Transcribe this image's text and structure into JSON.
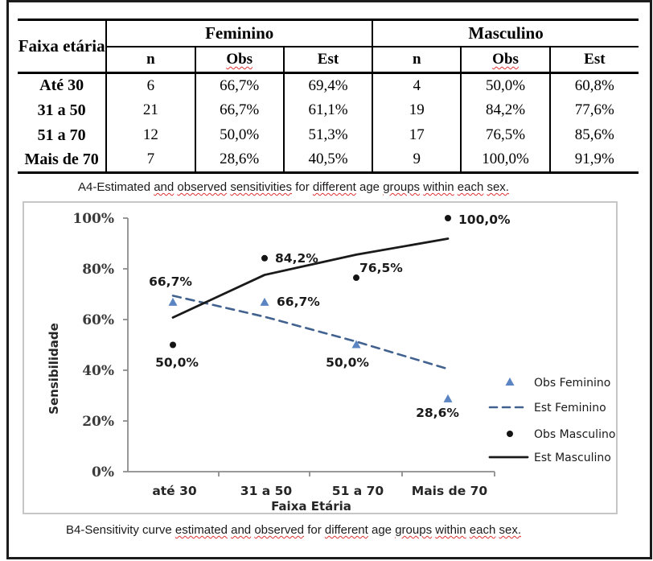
{
  "table": {
    "header": {
      "faixa_etaria": "Faixa etária",
      "feminino": "Feminino",
      "masculino": "Masculino",
      "n": "n",
      "obs": "Obs",
      "est": "Est"
    },
    "rows": [
      {
        "label": "Até 30",
        "f_n": "6",
        "f_obs": "66,7%",
        "f_est": "69,4%",
        "m_n": "4",
        "m_obs": "50,0%",
        "m_est": "60,8%"
      },
      {
        "label": "31 a 50",
        "f_n": "21",
        "f_obs": "66,7%",
        "f_est": "61,1%",
        "m_n": "19",
        "m_obs": "84,2%",
        "m_est": "77,6%"
      },
      {
        "label": "51 a 70",
        "f_n": "12",
        "f_obs": "50,0%",
        "f_est": "51,3%",
        "m_n": "17",
        "m_obs": "76,5%",
        "m_est": "85,6%"
      },
      {
        "label": "Mais de 70",
        "f_n": "7",
        "f_obs": "28,6%",
        "f_est": "40,5%",
        "m_n": "9",
        "m_obs": "100,0%",
        "m_est": "91,9%"
      }
    ]
  },
  "caption_a": {
    "words": [
      [
        "A4-Estimated",
        false
      ],
      [
        "and",
        true
      ],
      [
        "observed",
        true
      ],
      [
        "sensitivities",
        true
      ],
      [
        "for",
        false
      ],
      [
        "different",
        true
      ],
      [
        "age",
        false
      ],
      [
        "groups",
        true
      ],
      [
        "within",
        true
      ],
      [
        "each",
        true
      ],
      [
        "sex.",
        true
      ]
    ]
  },
  "caption_b": {
    "words": [
      [
        "B4-Sensitivity",
        false
      ],
      [
        "curve",
        false
      ],
      [
        "estimated",
        true
      ],
      [
        "and",
        true
      ],
      [
        "observed",
        true
      ],
      [
        "for",
        false
      ],
      [
        "different",
        true
      ],
      [
        "age",
        false
      ],
      [
        "groups",
        true
      ],
      [
        "within",
        true
      ],
      [
        "each",
        true
      ],
      [
        "sex.",
        true
      ]
    ]
  },
  "chart_data": {
    "type": "scatter",
    "categories": [
      "até 30",
      "31 a 50",
      "51 a 70",
      "Mais de 70"
    ],
    "xlabel": "Faixa Etária",
    "ylabel": "Sensibilidade",
    "ylim": [
      0,
      100
    ],
    "y_ticks": [
      "0%",
      "20%",
      "40%",
      "60%",
      "80%",
      "100%"
    ],
    "grid": false,
    "legend_position": "right",
    "series": [
      {
        "name": "Obs Feminino",
        "type": "scatter",
        "marker": "triangle",
        "color": "#5b84c3",
        "values": [
          66.7,
          66.7,
          50.0,
          28.6
        ],
        "point_labels": [
          "66,7%",
          "66,7%",
          "50,0%",
          "28,6%"
        ]
      },
      {
        "name": "Est Feminino",
        "type": "line",
        "style": "dashed",
        "color": "#41618f",
        "values": [
          69.4,
          61.1,
          51.3,
          40.5
        ]
      },
      {
        "name": "Obs Masculino",
        "type": "scatter",
        "marker": "dot",
        "color": "#141414",
        "values": [
          50.0,
          84.2,
          76.5,
          100.0
        ],
        "point_labels": [
          "50,0%",
          "84,2%",
          "76,5%",
          "100,0%"
        ]
      },
      {
        "name": "Est Masculino",
        "type": "line",
        "style": "solid",
        "color": "#1a1a1a",
        "values": [
          60.8,
          77.6,
          85.6,
          91.9
        ]
      }
    ],
    "axis_color": "#8c8c8c"
  }
}
